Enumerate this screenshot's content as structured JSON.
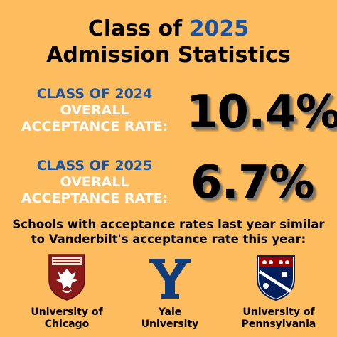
{
  "header": {
    "title_prefix": "Class of",
    "title_year": "2025",
    "title_line2": "Admission Statistics"
  },
  "stats": [
    {
      "label_blue": "CLASS OF 2024",
      "label_white_1": "OVERALL",
      "label_white_2": "ACCEPTANCE RATE:",
      "value": "10.4%"
    },
    {
      "label_blue": "CLASS OF 2025",
      "label_white_1": "OVERALL",
      "label_white_2": "ACCEPTANCE RATE:",
      "value": "6.7%"
    }
  ],
  "schools": {
    "heading_line1": "Schools with acceptance rates last year similar",
    "heading_line2": "to Vanderbilt's acceptance rate this year:",
    "items": [
      {
        "name_line1": "University of",
        "name_line2": "Chicago",
        "logo": "uchicago-phoenix-shield"
      },
      {
        "name_line1": "Yale",
        "name_line2": "University",
        "logo": "yale-y-logo"
      },
      {
        "name_line1": "University of",
        "name_line2": "Pennsylvania",
        "logo": "penn-shield"
      }
    ]
  },
  "colors": {
    "background": "#FDBD5E",
    "accent_blue": "#1754A8",
    "chicago_maroon": "#8B1A1A",
    "yale_blue": "#0F3C7A",
    "penn_navy": "#011F5B",
    "penn_red": "#990000"
  }
}
